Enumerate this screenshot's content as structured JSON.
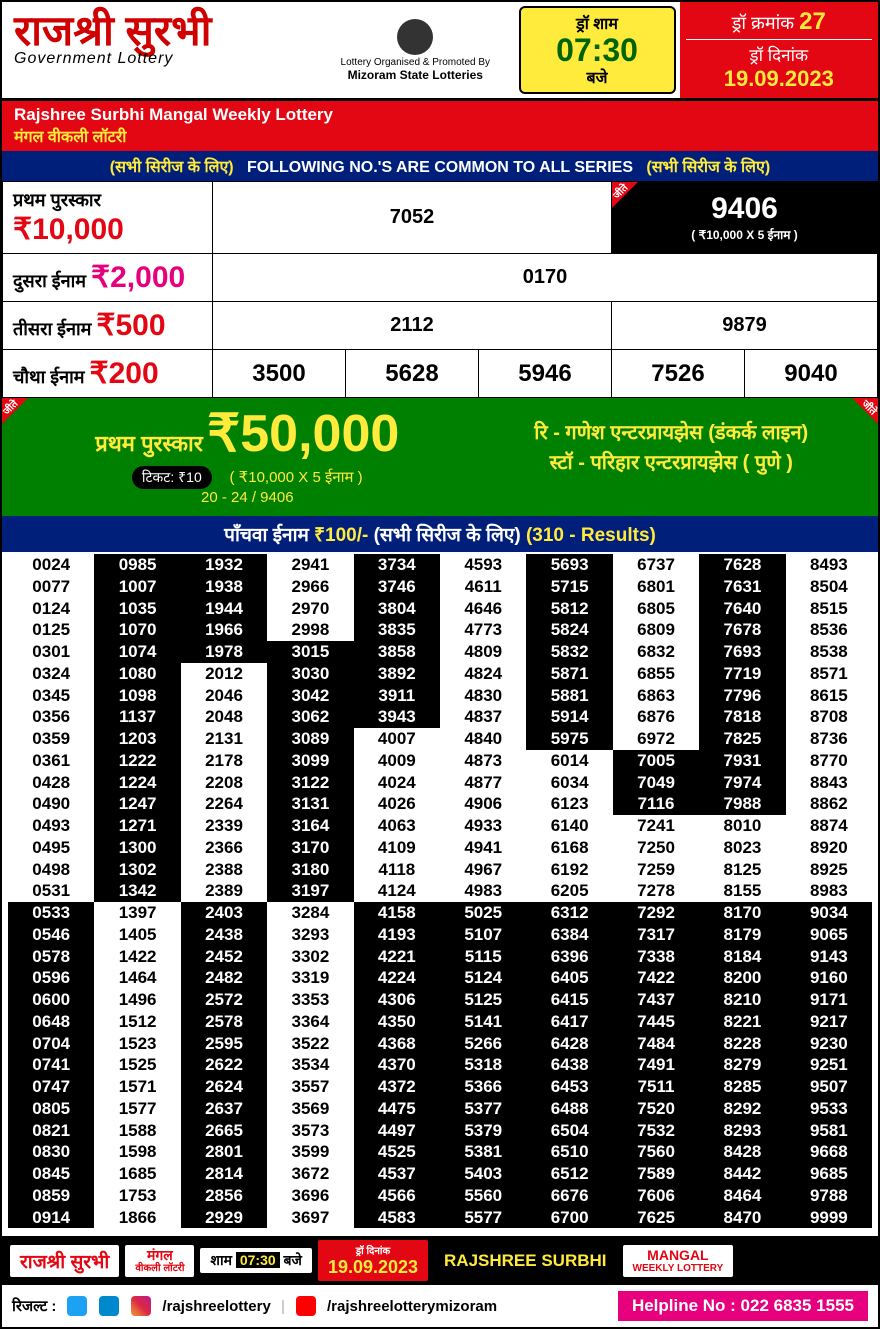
{
  "header": {
    "title_hi": "राजश्री सुरभी",
    "title_en": "Government Lottery",
    "title_color": "#d00000",
    "organiser_line1": "Lottery Organised & Promoted By",
    "organiser_line2": "Mizoram State Lotteries",
    "draw_time_label": "ड्रॉ शाम",
    "draw_time": "07:30",
    "draw_time_sub": "बजे",
    "draw_no_label": "ड्रॉ क्रमांक",
    "draw_no": "27",
    "draw_date_label": "ड्रॉ दिनांक",
    "draw_date": "19.09.2023"
  },
  "redbar": {
    "line1": "Rajshree Surbhi Mangal Weekly Lottery",
    "line2": "मंगल वीकली लॉटरी"
  },
  "bluebar": {
    "left": "(सभी सिरीज के लिए)",
    "mid": "FOLLOWING NO.'S ARE COMMON TO ALL SERIES",
    "right": "(सभी सिरीज के लिए)"
  },
  "prizes": {
    "p1": {
      "label": "प्रथम पुरस्कार",
      "amt": "₹10,000",
      "num1": "7052",
      "win": "9406",
      "win_sub": "( ₹10,000 X 5 ईनाम )"
    },
    "p2": {
      "label": "दुसरा ईनाम",
      "amt": "₹2,000",
      "num": "0170"
    },
    "p3": {
      "label": "तीसरा ईनाम",
      "amt": "₹500",
      "num1": "2112",
      "num2": "9879"
    },
    "p4": {
      "label": "चौथा ईनाम",
      "amt": "₹200",
      "n1": "3500",
      "n2": "5628",
      "n3": "5946",
      "n4": "7526",
      "n5": "9040"
    }
  },
  "green": {
    "label": "प्रथम पुरस्कार",
    "amt": "₹50,000",
    "sub1": "( ₹10,000 X 5 ईनाम )",
    "sub2": "20 - 24 / 9406",
    "ticket": "टिकट: ₹10",
    "right1": "रि - गणेश एन्टरप्रायझेस (डंकर्क लाइन)",
    "right2": "स्टॉ - परिहार एन्टरप्रायझेस ( पुणे )",
    "corner": "जीते"
  },
  "fifth": {
    "label": "पाँचवा ईनाम",
    "amt": "₹100/-",
    "series": "(सभी सिरीज के लिए)",
    "count": "(310 - Results)"
  },
  "grid": {
    "pattern_comment": "alternating runs of w/b per column as in image",
    "cols": [
      [
        [
          "0024",
          "w"
        ],
        [
          "0077",
          "w"
        ],
        [
          "0124",
          "w"
        ],
        [
          "0125",
          "w"
        ],
        [
          "0301",
          "w"
        ],
        [
          "0324",
          "w"
        ],
        [
          "0345",
          "w"
        ],
        [
          "0356",
          "w"
        ],
        [
          "0359",
          "w"
        ],
        [
          "0361",
          "w"
        ],
        [
          "0428",
          "w"
        ],
        [
          "0490",
          "w"
        ],
        [
          "0493",
          "w"
        ],
        [
          "0495",
          "w"
        ],
        [
          "0498",
          "w"
        ],
        [
          "0531",
          "w"
        ],
        [
          "0533",
          "b"
        ],
        [
          "0546",
          "b"
        ],
        [
          "0578",
          "b"
        ],
        [
          "0596",
          "b"
        ],
        [
          "0600",
          "b"
        ],
        [
          "0648",
          "b"
        ],
        [
          "0704",
          "b"
        ],
        [
          "0741",
          "b"
        ],
        [
          "0747",
          "b"
        ],
        [
          "0805",
          "b"
        ],
        [
          "0821",
          "b"
        ],
        [
          "0830",
          "b"
        ],
        [
          "0845",
          "b"
        ],
        [
          "0859",
          "b"
        ],
        [
          "0914",
          "b"
        ]
      ],
      [
        [
          "0985",
          "b"
        ],
        [
          "1007",
          "b"
        ],
        [
          "1035",
          "b"
        ],
        [
          "1070",
          "b"
        ],
        [
          "1074",
          "b"
        ],
        [
          "1080",
          "b"
        ],
        [
          "1098",
          "b"
        ],
        [
          "1137",
          "b"
        ],
        [
          "1203",
          "b"
        ],
        [
          "1222",
          "b"
        ],
        [
          "1224",
          "b"
        ],
        [
          "1247",
          "b"
        ],
        [
          "1271",
          "b"
        ],
        [
          "1300",
          "b"
        ],
        [
          "1302",
          "b"
        ],
        [
          "1342",
          "b"
        ],
        [
          "1397",
          "w"
        ],
        [
          "1405",
          "w"
        ],
        [
          "1422",
          "w"
        ],
        [
          "1464",
          "w"
        ],
        [
          "1496",
          "w"
        ],
        [
          "1512",
          "w"
        ],
        [
          "1523",
          "w"
        ],
        [
          "1525",
          "w"
        ],
        [
          "1571",
          "w"
        ],
        [
          "1577",
          "w"
        ],
        [
          "1588",
          "w"
        ],
        [
          "1598",
          "w"
        ],
        [
          "1685",
          "w"
        ],
        [
          "1753",
          "w"
        ],
        [
          "1866",
          "w"
        ]
      ],
      [
        [
          "1932",
          "b"
        ],
        [
          "1938",
          "b"
        ],
        [
          "1944",
          "b"
        ],
        [
          "1966",
          "b"
        ],
        [
          "1978",
          "b"
        ],
        [
          "2012",
          "w"
        ],
        [
          "2046",
          "w"
        ],
        [
          "2048",
          "w"
        ],
        [
          "2131",
          "w"
        ],
        [
          "2178",
          "w"
        ],
        [
          "2208",
          "w"
        ],
        [
          "2264",
          "w"
        ],
        [
          "2339",
          "w"
        ],
        [
          "2366",
          "w"
        ],
        [
          "2388",
          "w"
        ],
        [
          "2389",
          "w"
        ],
        [
          "2403",
          "b"
        ],
        [
          "2438",
          "b"
        ],
        [
          "2452",
          "b"
        ],
        [
          "2482",
          "b"
        ],
        [
          "2572",
          "b"
        ],
        [
          "2578",
          "b"
        ],
        [
          "2595",
          "b"
        ],
        [
          "2622",
          "b"
        ],
        [
          "2624",
          "b"
        ],
        [
          "2637",
          "b"
        ],
        [
          "2665",
          "b"
        ],
        [
          "2801",
          "b"
        ],
        [
          "2814",
          "b"
        ],
        [
          "2856",
          "b"
        ],
        [
          "2929",
          "b"
        ]
      ],
      [
        [
          "2941",
          "w"
        ],
        [
          "2966",
          "w"
        ],
        [
          "2970",
          "w"
        ],
        [
          "2998",
          "w"
        ],
        [
          "3015",
          "b"
        ],
        [
          "3030",
          "b"
        ],
        [
          "3042",
          "b"
        ],
        [
          "3062",
          "b"
        ],
        [
          "3089",
          "b"
        ],
        [
          "3099",
          "b"
        ],
        [
          "3122",
          "b"
        ],
        [
          "3131",
          "b"
        ],
        [
          "3164",
          "b"
        ],
        [
          "3170",
          "b"
        ],
        [
          "3180",
          "b"
        ],
        [
          "3197",
          "b"
        ],
        [
          "3284",
          "w"
        ],
        [
          "3293",
          "w"
        ],
        [
          "3302",
          "w"
        ],
        [
          "3319",
          "w"
        ],
        [
          "3353",
          "w"
        ],
        [
          "3364",
          "w"
        ],
        [
          "3522",
          "w"
        ],
        [
          "3534",
          "w"
        ],
        [
          "3557",
          "w"
        ],
        [
          "3569",
          "w"
        ],
        [
          "3573",
          "w"
        ],
        [
          "3599",
          "w"
        ],
        [
          "3672",
          "w"
        ],
        [
          "3696",
          "w"
        ],
        [
          "3697",
          "w"
        ]
      ],
      [
        [
          "3734",
          "b"
        ],
        [
          "3746",
          "b"
        ],
        [
          "3804",
          "b"
        ],
        [
          "3835",
          "b"
        ],
        [
          "3858",
          "b"
        ],
        [
          "3892",
          "b"
        ],
        [
          "3911",
          "b"
        ],
        [
          "3943",
          "b"
        ],
        [
          "4007",
          "w"
        ],
        [
          "4009",
          "w"
        ],
        [
          "4024",
          "w"
        ],
        [
          "4026",
          "w"
        ],
        [
          "4063",
          "w"
        ],
        [
          "4109",
          "w"
        ],
        [
          "4118",
          "w"
        ],
        [
          "4124",
          "w"
        ],
        [
          "4158",
          "b"
        ],
        [
          "4193",
          "b"
        ],
        [
          "4221",
          "b"
        ],
        [
          "4224",
          "b"
        ],
        [
          "4306",
          "b"
        ],
        [
          "4350",
          "b"
        ],
        [
          "4368",
          "b"
        ],
        [
          "4370",
          "b"
        ],
        [
          "4372",
          "b"
        ],
        [
          "4475",
          "b"
        ],
        [
          "4497",
          "b"
        ],
        [
          "4525",
          "b"
        ],
        [
          "4537",
          "b"
        ],
        [
          "4566",
          "b"
        ],
        [
          "4583",
          "b"
        ]
      ],
      [
        [
          "4593",
          "w"
        ],
        [
          "4611",
          "w"
        ],
        [
          "4646",
          "w"
        ],
        [
          "4773",
          "w"
        ],
        [
          "4809",
          "w"
        ],
        [
          "4824",
          "w"
        ],
        [
          "4830",
          "w"
        ],
        [
          "4837",
          "w"
        ],
        [
          "4840",
          "w"
        ],
        [
          "4873",
          "w"
        ],
        [
          "4877",
          "w"
        ],
        [
          "4906",
          "w"
        ],
        [
          "4933",
          "w"
        ],
        [
          "4941",
          "w"
        ],
        [
          "4967",
          "w"
        ],
        [
          "4983",
          "w"
        ],
        [
          "5025",
          "b"
        ],
        [
          "5107",
          "b"
        ],
        [
          "5115",
          "b"
        ],
        [
          "5124",
          "b"
        ],
        [
          "5125",
          "b"
        ],
        [
          "5141",
          "b"
        ],
        [
          "5266",
          "b"
        ],
        [
          "5318",
          "b"
        ],
        [
          "5366",
          "b"
        ],
        [
          "5377",
          "b"
        ],
        [
          "5379",
          "b"
        ],
        [
          "5381",
          "b"
        ],
        [
          "5403",
          "b"
        ],
        [
          "5560",
          "b"
        ],
        [
          "5577",
          "b"
        ]
      ],
      [
        [
          "5693",
          "b"
        ],
        [
          "5715",
          "b"
        ],
        [
          "5812",
          "b"
        ],
        [
          "5824",
          "b"
        ],
        [
          "5832",
          "b"
        ],
        [
          "5871",
          "b"
        ],
        [
          "5881",
          "b"
        ],
        [
          "5914",
          "b"
        ],
        [
          "5975",
          "b"
        ],
        [
          "6014",
          "w"
        ],
        [
          "6034",
          "w"
        ],
        [
          "6123",
          "w"
        ],
        [
          "6140",
          "w"
        ],
        [
          "6168",
          "w"
        ],
        [
          "6192",
          "w"
        ],
        [
          "6205",
          "w"
        ],
        [
          "6312",
          "b"
        ],
        [
          "6384",
          "b"
        ],
        [
          "6396",
          "b"
        ],
        [
          "6405",
          "b"
        ],
        [
          "6415",
          "b"
        ],
        [
          "6417",
          "b"
        ],
        [
          "6428",
          "b"
        ],
        [
          "6438",
          "b"
        ],
        [
          "6453",
          "b"
        ],
        [
          "6488",
          "b"
        ],
        [
          "6504",
          "b"
        ],
        [
          "6510",
          "b"
        ],
        [
          "6512",
          "b"
        ],
        [
          "6676",
          "b"
        ],
        [
          "6700",
          "b"
        ]
      ],
      [
        [
          "6737",
          "w"
        ],
        [
          "6801",
          "w"
        ],
        [
          "6805",
          "w"
        ],
        [
          "6809",
          "w"
        ],
        [
          "6832",
          "w"
        ],
        [
          "6855",
          "w"
        ],
        [
          "6863",
          "w"
        ],
        [
          "6876",
          "w"
        ],
        [
          "6972",
          "w"
        ],
        [
          "7005",
          "b"
        ],
        [
          "7049",
          "b"
        ],
        [
          "7116",
          "b"
        ],
        [
          "7241",
          "w"
        ],
        [
          "7250",
          "w"
        ],
        [
          "7259",
          "w"
        ],
        [
          "7278",
          "w"
        ],
        [
          "7292",
          "b"
        ],
        [
          "7317",
          "b"
        ],
        [
          "7338",
          "b"
        ],
        [
          "7422",
          "b"
        ],
        [
          "7437",
          "b"
        ],
        [
          "7445",
          "b"
        ],
        [
          "7484",
          "b"
        ],
        [
          "7491",
          "b"
        ],
        [
          "7511",
          "b"
        ],
        [
          "7520",
          "b"
        ],
        [
          "7532",
          "b"
        ],
        [
          "7560",
          "b"
        ],
        [
          "7589",
          "b"
        ],
        [
          "7606",
          "b"
        ],
        [
          "7625",
          "b"
        ]
      ],
      [
        [
          "7628",
          "b"
        ],
        [
          "7631",
          "b"
        ],
        [
          "7640",
          "b"
        ],
        [
          "7678",
          "b"
        ],
        [
          "7693",
          "b"
        ],
        [
          "7719",
          "b"
        ],
        [
          "7796",
          "b"
        ],
        [
          "7818",
          "b"
        ],
        [
          "7825",
          "b"
        ],
        [
          "7931",
          "b"
        ],
        [
          "7974",
          "b"
        ],
        [
          "7988",
          "b"
        ],
        [
          "8010",
          "w"
        ],
        [
          "8023",
          "w"
        ],
        [
          "8125",
          "w"
        ],
        [
          "8155",
          "w"
        ],
        [
          "8170",
          "b"
        ],
        [
          "8179",
          "b"
        ],
        [
          "8184",
          "b"
        ],
        [
          "8200",
          "b"
        ],
        [
          "8210",
          "b"
        ],
        [
          "8221",
          "b"
        ],
        [
          "8228",
          "b"
        ],
        [
          "8279",
          "b"
        ],
        [
          "8285",
          "b"
        ],
        [
          "8292",
          "b"
        ],
        [
          "8293",
          "b"
        ],
        [
          "8428",
          "b"
        ],
        [
          "8442",
          "b"
        ],
        [
          "8464",
          "b"
        ],
        [
          "8470",
          "b"
        ]
      ],
      [
        [
          "8493",
          "w"
        ],
        [
          "8504",
          "w"
        ],
        [
          "8515",
          "w"
        ],
        [
          "8536",
          "w"
        ],
        [
          "8538",
          "w"
        ],
        [
          "8571",
          "w"
        ],
        [
          "8615",
          "w"
        ],
        [
          "8708",
          "w"
        ],
        [
          "8736",
          "w"
        ],
        [
          "8770",
          "w"
        ],
        [
          "8843",
          "w"
        ],
        [
          "8862",
          "w"
        ],
        [
          "8874",
          "w"
        ],
        [
          "8920",
          "w"
        ],
        [
          "8925",
          "w"
        ],
        [
          "8983",
          "w"
        ],
        [
          "9034",
          "b"
        ],
        [
          "9065",
          "b"
        ],
        [
          "9143",
          "b"
        ],
        [
          "9160",
          "b"
        ],
        [
          "9171",
          "b"
        ],
        [
          "9217",
          "b"
        ],
        [
          "9230",
          "b"
        ],
        [
          "9251",
          "b"
        ],
        [
          "9507",
          "b"
        ],
        [
          "9533",
          "b"
        ],
        [
          "9581",
          "b"
        ],
        [
          "9668",
          "b"
        ],
        [
          "9685",
          "b"
        ],
        [
          "9788",
          "b"
        ],
        [
          "9999",
          "b"
        ]
      ]
    ]
  },
  "footer1": {
    "b1": "राजश्री सुरभी",
    "b2a": "मंगल",
    "b2b": "वीकली लॉटरी",
    "b3a": "शाम",
    "b3b": "07:30",
    "b3c": "बजे",
    "b4a": "ड्रॉ दिनांक",
    "b4b": "19.09.2023",
    "b5": "RAJSHREE SURBHI",
    "b6a": "MANGAL",
    "b6b": "WEEKLY LOTTERY"
  },
  "footer2": {
    "result_label": "रिजल्ट :",
    "handle1": "/rajshreelottery",
    "handle2": "/rajshreelotterymizoram",
    "helpline": "Helpline No : 022 6835 1555"
  },
  "colors": {
    "red": "#e30613",
    "blue": "#001f7a",
    "green": "#008000",
    "yellow": "#ffeb3b",
    "pink": "#e6007e",
    "title": "#d00000"
  }
}
